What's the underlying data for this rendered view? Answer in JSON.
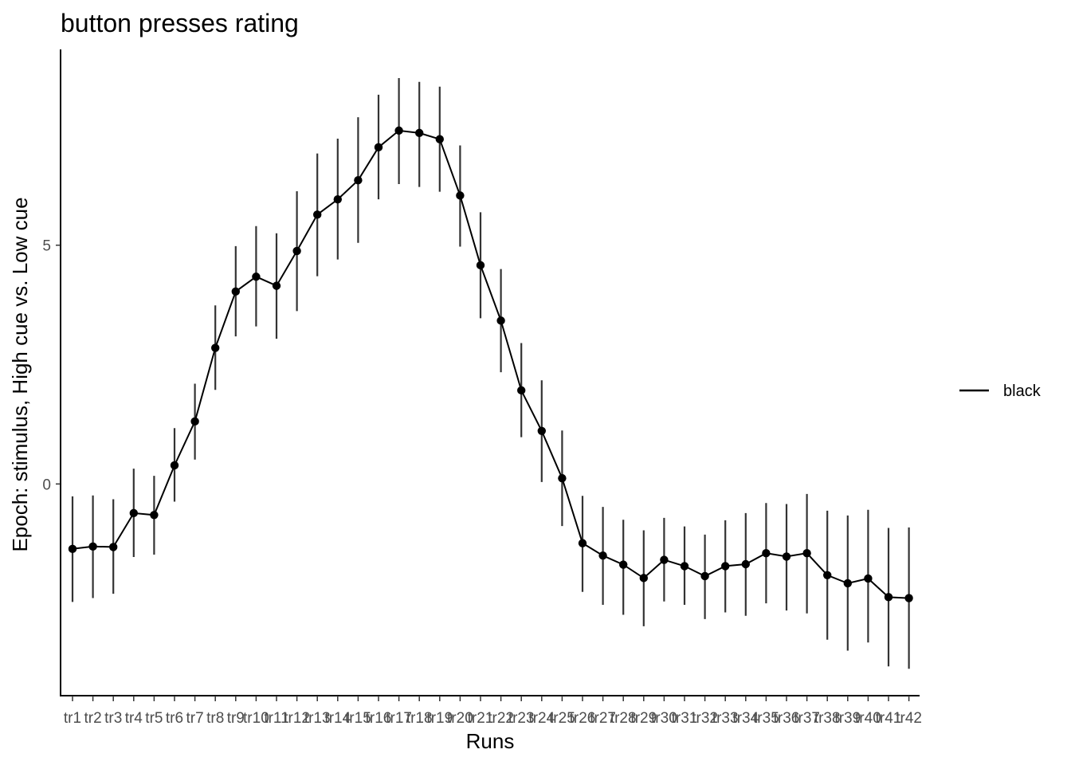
{
  "chart_data": {
    "type": "line",
    "title": "button presses rating",
    "xlabel": "Runs",
    "ylabel": "Epoch: stimulus, High cue vs. Low cue",
    "ylim": [
      -4.45,
      9.1
    ],
    "yticks": [
      0,
      5
    ],
    "grid": false,
    "legend": {
      "position": "right",
      "entries": [
        "black"
      ]
    },
    "colors": {
      "line": "#000000",
      "errorbar": "#333333",
      "axis": "#000000"
    },
    "categories": [
      "tr1",
      "tr2",
      "tr3",
      "tr4",
      "tr5",
      "tr6",
      "tr7",
      "tr8",
      "tr9",
      "tr10",
      "tr11",
      "tr12",
      "tr13",
      "tr14",
      "tr15",
      "tr16",
      "tr17",
      "tr18",
      "tr19",
      "tr20",
      "tr21",
      "tr22",
      "tr23",
      "tr24",
      "tr25",
      "tr26",
      "tr27",
      "tr28",
      "tr29",
      "tr30",
      "tr31",
      "tr32",
      "tr33",
      "tr34",
      "tr35",
      "tr36",
      "tr37",
      "tr38",
      "tr39",
      "tr40",
      "tr41",
      "tr42"
    ],
    "series": [
      {
        "name": "black",
        "values": [
          -1.36,
          -1.31,
          -1.32,
          -0.61,
          -0.65,
          0.39,
          1.31,
          2.85,
          4.03,
          4.34,
          4.15,
          4.88,
          5.64,
          5.96,
          6.36,
          7.05,
          7.4,
          7.35,
          7.22,
          6.04,
          4.58,
          3.42,
          1.96,
          1.11,
          0.12,
          -1.24,
          -1.5,
          -1.69,
          -1.97,
          -1.59,
          -1.72,
          -1.93,
          -1.72,
          -1.68,
          -1.45,
          -1.52,
          -1.45,
          -1.91,
          -2.08,
          -1.98,
          -2.37,
          -2.39
        ],
        "lower": [
          -2.47,
          -2.39,
          -2.3,
          -1.53,
          -1.48,
          -0.37,
          0.51,
          1.97,
          3.09,
          3.3,
          3.04,
          3.62,
          4.35,
          4.7,
          5.05,
          5.96,
          6.28,
          6.22,
          6.12,
          4.97,
          3.47,
          2.34,
          0.98,
          0.04,
          -0.88,
          -2.26,
          -2.53,
          -2.74,
          -2.98,
          -2.46,
          -2.53,
          -2.83,
          -2.69,
          -2.76,
          -2.5,
          -2.65,
          -2.71,
          -3.26,
          -3.49,
          -3.32,
          -3.82,
          -3.87
        ],
        "upper": [
          -0.26,
          -0.24,
          -0.32,
          0.32,
          0.17,
          1.17,
          2.1,
          3.74,
          4.98,
          5.4,
          5.25,
          6.13,
          6.92,
          7.23,
          7.68,
          8.15,
          8.5,
          8.42,
          8.32,
          7.09,
          5.69,
          4.5,
          2.95,
          2.17,
          1.12,
          -0.25,
          -0.48,
          -0.75,
          -0.97,
          -0.71,
          -0.89,
          -1.06,
          -0.76,
          -0.61,
          -0.4,
          -0.42,
          -0.21,
          -0.56,
          -0.66,
          -0.54,
          -0.92,
          -0.91
        ]
      }
    ]
  }
}
